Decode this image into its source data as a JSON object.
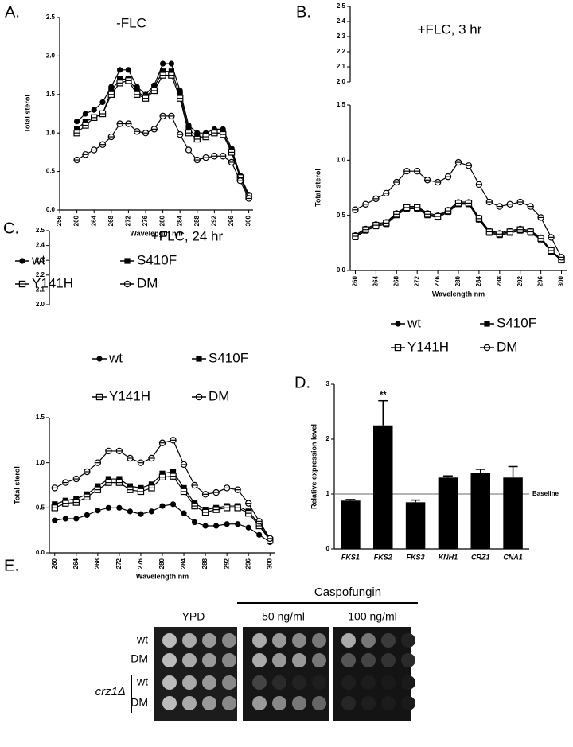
{
  "chart_data": [
    {
      "type": "line",
      "panel_label": "A.",
      "title": "-FLC",
      "xlabel": "Wavelength nm",
      "ylabel": "Total sterol",
      "x": [
        260,
        262,
        264,
        266,
        268,
        270,
        272,
        274,
        276,
        278,
        280,
        282,
        284,
        286,
        288,
        290,
        292,
        294,
        296,
        298,
        300
      ],
      "xlim": [
        256,
        301
      ],
      "xticks": [
        256,
        260,
        264,
        268,
        272,
        276,
        280,
        284,
        288,
        292,
        296,
        300
      ],
      "ylim": [
        0,
        2.5
      ],
      "yticks": [
        {
          "value": 0,
          "label": "0.0"
        },
        0.5,
        {
          "value": 1,
          "label": "1.0"
        },
        1.5,
        {
          "value": 2,
          "label": "2.0"
        },
        2.5
      ],
      "legend": true,
      "series": [
        {
          "name": "wt",
          "color": "#000000",
          "marker": "filled-circle",
          "values": [
            1.15,
            1.25,
            1.3,
            1.4,
            1.6,
            1.82,
            1.82,
            1.6,
            1.5,
            1.62,
            1.9,
            1.9,
            1.55,
            1.1,
            1.0,
            1.0,
            1.05,
            1.05,
            0.8,
            0.45,
            0.2
          ]
        },
        {
          "name": "S410F",
          "color": "#000000",
          "marker": "filled-square",
          "values": [
            1.05,
            1.15,
            1.2,
            1.25,
            1.55,
            1.7,
            1.7,
            1.55,
            1.45,
            1.6,
            1.8,
            1.8,
            1.5,
            1.05,
            0.95,
            0.95,
            1.0,
            1.0,
            0.78,
            0.42,
            0.18
          ]
        },
        {
          "name": "Y141H",
          "color": "#000000",
          "marker": "open-square",
          "values": [
            1.0,
            1.1,
            1.2,
            1.25,
            1.5,
            1.65,
            1.68,
            1.5,
            1.45,
            1.55,
            1.75,
            1.75,
            1.45,
            1.0,
            0.92,
            0.95,
            1.0,
            0.98,
            0.75,
            0.42,
            0.18
          ]
        },
        {
          "name": "DM",
          "color": "#000000",
          "marker": "open-circle",
          "values": [
            0.65,
            0.72,
            0.78,
            0.85,
            0.95,
            1.12,
            1.12,
            1.02,
            1.0,
            1.05,
            1.22,
            1.22,
            0.98,
            0.78,
            0.65,
            0.68,
            0.7,
            0.7,
            0.62,
            0.38,
            0.15
          ]
        }
      ]
    },
    {
      "type": "line",
      "panel_label": "B.",
      "title": "+FLC, 3 hr",
      "xlabel": "Wavelength nm",
      "ylabel": "Total sterol",
      "x": [
        260,
        262,
        264,
        266,
        268,
        270,
        272,
        274,
        276,
        278,
        280,
        282,
        284,
        286,
        288,
        290,
        292,
        294,
        296,
        298,
        300
      ],
      "xlim": [
        259,
        301
      ],
      "xticks": [
        260,
        264,
        268,
        272,
        276,
        280,
        284,
        288,
        292,
        296,
        300
      ],
      "ylim": [
        0,
        1.5
      ],
      "yticks": [
        {
          "value": 0,
          "label": "0.0"
        },
        0.5,
        {
          "value": 1,
          "label": "1.0"
        },
        1.5
      ],
      "break_lim": [
        2,
        2.5
      ],
      "break_ticks": [
        {
          "value": 2,
          "label": "2.0"
        },
        2.1,
        2.2,
        2.3,
        2.4,
        2.5
      ],
      "legend": true,
      "series": [
        {
          "name": "wt",
          "color": "#000000",
          "marker": "filled-circle",
          "values": [
            0.32,
            0.38,
            0.42,
            0.44,
            0.52,
            0.58,
            0.58,
            0.52,
            0.5,
            0.55,
            0.62,
            0.62,
            0.48,
            0.36,
            0.34,
            0.36,
            0.38,
            0.36,
            0.3,
            0.18,
            0.1
          ]
        },
        {
          "name": "S410F",
          "color": "#000000",
          "marker": "filled-square",
          "values": [
            0.3,
            0.36,
            0.4,
            0.42,
            0.5,
            0.56,
            0.56,
            0.5,
            0.48,
            0.53,
            0.6,
            0.6,
            0.46,
            0.34,
            0.32,
            0.34,
            0.36,
            0.34,
            0.28,
            0.17,
            0.09
          ]
        },
        {
          "name": "Y141H",
          "color": "#000000",
          "marker": "open-square",
          "values": [
            0.31,
            0.37,
            0.41,
            0.43,
            0.51,
            0.57,
            0.57,
            0.51,
            0.49,
            0.54,
            0.61,
            0.61,
            0.47,
            0.35,
            0.33,
            0.35,
            0.37,
            0.35,
            0.29,
            0.18,
            0.1
          ]
        },
        {
          "name": "DM",
          "color": "#000000",
          "marker": "open-circle",
          "values": [
            0.55,
            0.6,
            0.65,
            0.7,
            0.8,
            0.9,
            0.9,
            0.82,
            0.8,
            0.85,
            0.98,
            0.95,
            0.78,
            0.62,
            0.58,
            0.6,
            0.62,
            0.58,
            0.48,
            0.3,
            0.12
          ]
        }
      ]
    },
    {
      "type": "line",
      "panel_label": "C.",
      "title": "+FLC, 24 hr",
      "xlabel": "Wavelength nm",
      "ylabel": "Total sterol",
      "x": [
        260,
        262,
        264,
        266,
        268,
        270,
        272,
        274,
        276,
        278,
        280,
        282,
        284,
        286,
        288,
        290,
        292,
        294,
        296,
        298,
        300
      ],
      "xlim": [
        259,
        301
      ],
      "xticks": [
        260,
        264,
        268,
        272,
        276,
        280,
        284,
        288,
        292,
        296,
        300
      ],
      "ylim": [
        0,
        1.5
      ],
      "yticks": [
        {
          "value": 0,
          "label": "0.0"
        },
        0.5,
        {
          "value": 1,
          "label": "1.0"
        },
        1.5
      ],
      "break_lim": [
        2,
        2.5
      ],
      "break_ticks": [
        {
          "value": 2,
          "label": "2.0"
        },
        2.1,
        2.2,
        2.3,
        2.4,
        2.5
      ],
      "legend": true,
      "series": [
        {
          "name": "wt",
          "color": "#000000",
          "marker": "filled-circle",
          "values": [
            0.36,
            0.38,
            0.38,
            0.42,
            0.47,
            0.5,
            0.5,
            0.46,
            0.43,
            0.46,
            0.52,
            0.54,
            0.44,
            0.34,
            0.3,
            0.3,
            0.32,
            0.32,
            0.28,
            0.2,
            0.12
          ]
        },
        {
          "name": "S410F",
          "color": "#000000",
          "marker": "filled-square",
          "values": [
            0.54,
            0.58,
            0.6,
            0.65,
            0.74,
            0.82,
            0.82,
            0.74,
            0.72,
            0.76,
            0.88,
            0.9,
            0.72,
            0.55,
            0.48,
            0.5,
            0.52,
            0.52,
            0.46,
            0.32,
            0.15
          ]
        },
        {
          "name": "Y141H",
          "color": "#000000",
          "marker": "open-square",
          "values": [
            0.5,
            0.55,
            0.56,
            0.62,
            0.7,
            0.78,
            0.78,
            0.7,
            0.68,
            0.72,
            0.84,
            0.85,
            0.68,
            0.52,
            0.45,
            0.48,
            0.5,
            0.5,
            0.44,
            0.3,
            0.14
          ]
        },
        {
          "name": "DM",
          "color": "#000000",
          "marker": "open-circle",
          "values": [
            0.72,
            0.78,
            0.82,
            0.9,
            1.0,
            1.13,
            1.13,
            1.05,
            1.0,
            1.05,
            1.22,
            1.25,
            0.98,
            0.75,
            0.65,
            0.67,
            0.72,
            0.7,
            0.55,
            0.35,
            0.16
          ]
        }
      ]
    },
    {
      "type": "bar",
      "panel_label": "D.",
      "ylabel": "Relative expression level",
      "categories": [
        "FKS1",
        "FKS2",
        "FKS3",
        "KNH1",
        "CRZ1",
        "CNA1"
      ],
      "values": [
        0.88,
        2.25,
        0.85,
        1.3,
        1.38,
        1.3
      ],
      "errors": [
        0.02,
        0.45,
        0.04,
        0.03,
        0.07,
        0.2
      ],
      "color": "#000000",
      "ylim": [
        0,
        3
      ],
      "yticks": [
        0,
        1,
        2,
        3
      ],
      "reference_line": {
        "value": 1,
        "label": "Baseline"
      },
      "annotations": [
        {
          "category": 1,
          "text": "**"
        }
      ]
    }
  ],
  "figure_e": {
    "panel_label": "E.",
    "drug": "Caspofungin",
    "conditions": [
      "YPD",
      "50 ng/ml",
      "100 ng/ml"
    ],
    "rows": [
      "wt",
      "DM",
      "wt",
      "DM"
    ],
    "mutant": "crz1Δ"
  }
}
